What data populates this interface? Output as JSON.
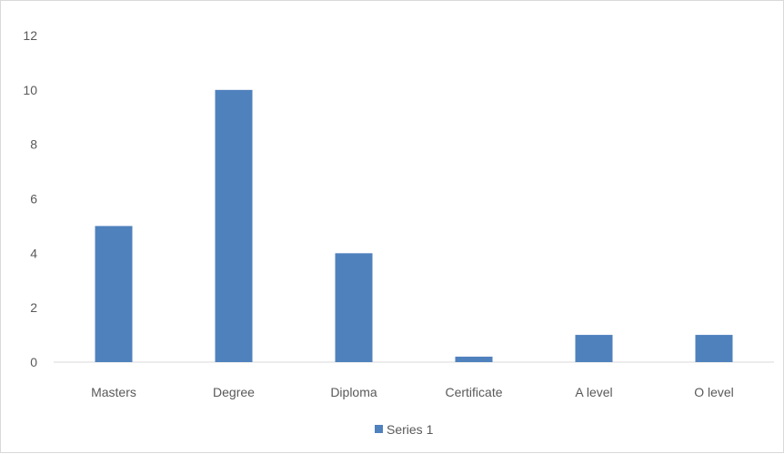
{
  "chart_data": {
    "type": "bar",
    "title": "",
    "xlabel": "",
    "ylabel": "",
    "categories": [
      "Masters",
      "Degree",
      "Diploma",
      "Certificate",
      "A level",
      "O level"
    ],
    "series": [
      {
        "name": "Series 1",
        "values": [
          5,
          10,
          4,
          0.2,
          1,
          1
        ],
        "color": "#4f81bd"
      }
    ],
    "ylim": [
      0,
      12
    ],
    "yticks": [
      "0",
      "2",
      "4",
      "6",
      "8",
      "10",
      "12"
    ],
    "grid": false,
    "legend": {
      "position": "bottom",
      "label": "Series 1"
    },
    "axis_color": "#d9d9d9",
    "text_color": "#595959"
  }
}
